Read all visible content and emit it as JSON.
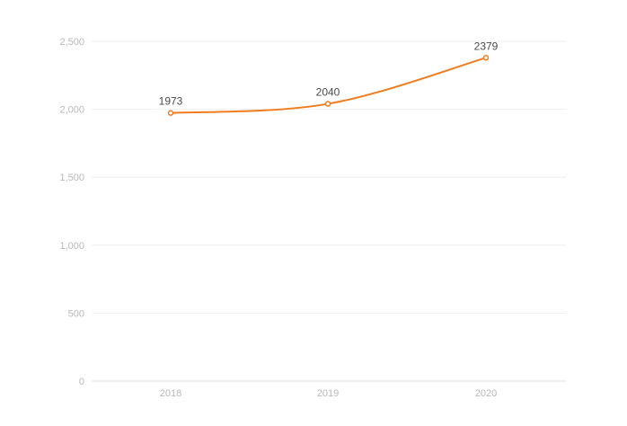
{
  "chart_data": {
    "type": "line",
    "categories": [
      "2018",
      "2019",
      "2020"
    ],
    "series": [
      {
        "values": [
          1973,
          2040,
          2379
        ]
      }
    ],
    "ylim": [
      0,
      2500
    ],
    "yticks": [
      0,
      500,
      1000,
      1500,
      2000,
      2500
    ],
    "ytick_labels": [
      "0",
      "500",
      "1,000",
      "1,500",
      "2,000",
      "2,500"
    ],
    "data_labels": [
      "1973",
      "2040",
      "2379"
    ],
    "grid": true,
    "smooth": true,
    "line_color": "#f07c1e",
    "grid_color": "#eeeeee",
    "axis_color": "#e2e2e2",
    "tick_color": "#b8b8b8",
    "label_color": "#4a4a4a"
  }
}
